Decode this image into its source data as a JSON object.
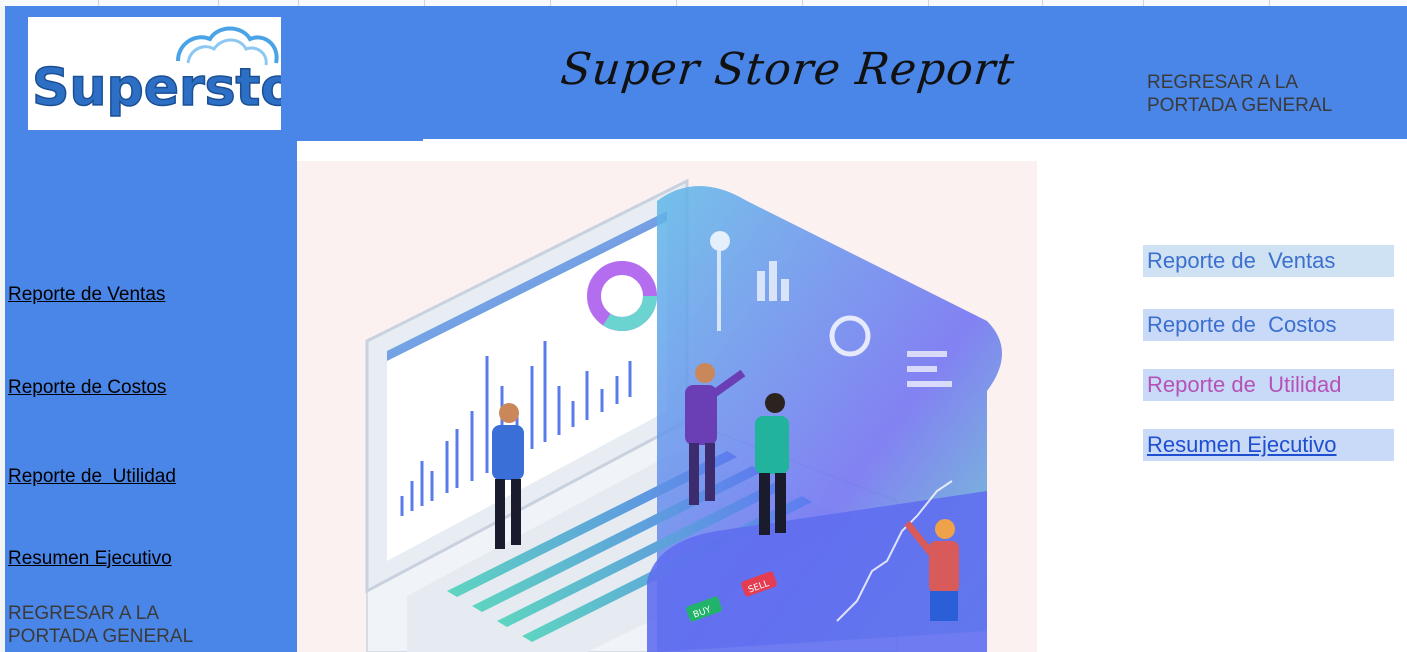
{
  "header": {
    "logo_text": "Superstore",
    "title": "Super Store Report",
    "return_link": "REGRESAR A LA PORTADA GENERAL"
  },
  "left_nav": {
    "items": [
      {
        "label": "Reporte de Ventas"
      },
      {
        "label": "Reporte de Costos"
      },
      {
        "label": "Reporte de  Utilidad"
      },
      {
        "label": "Resumen Ejecutivo"
      }
    ],
    "return_link": "REGRESAR A LA PORTADA GENERAL"
  },
  "right_nav": {
    "items": [
      {
        "label": "Reporte de  Ventas"
      },
      {
        "label": "Reporte de  Costos"
      },
      {
        "label": "Reporte de  Utilidad"
      },
      {
        "label": "Resumen Ejecutivo"
      }
    ]
  },
  "illustration": {
    "buy_label": "BUY",
    "sell_label": "SELL"
  },
  "colors": {
    "panel_blue": "#4a86e8",
    "right_nav_bg": "#c9daf8",
    "utilidad_text": "#b452b8",
    "link_blue": "#3c6fcf"
  }
}
